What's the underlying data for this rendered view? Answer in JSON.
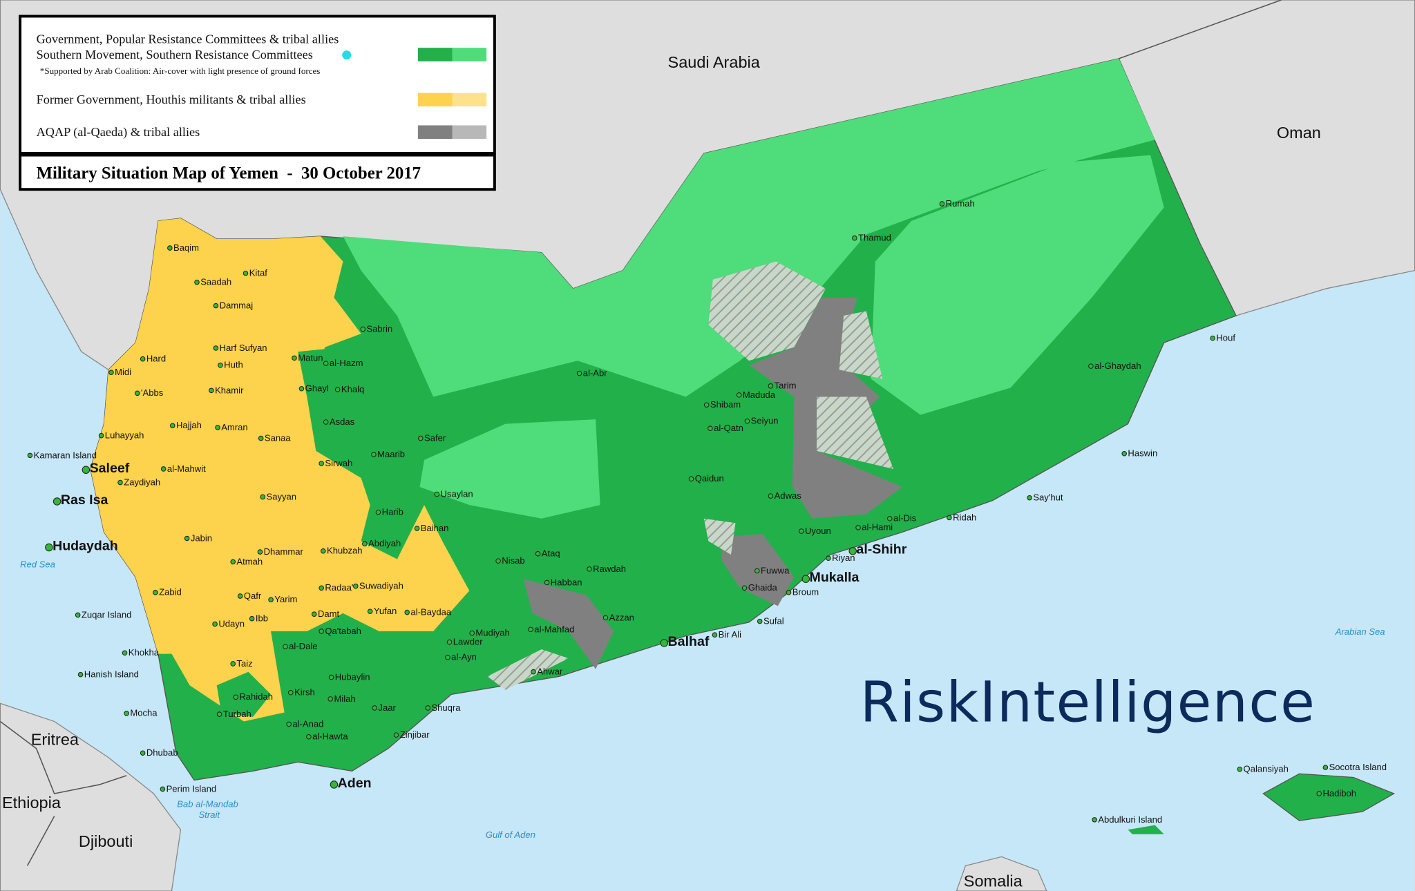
{
  "map": {
    "title": "Military Situation Map of Yemen  -  30 October 2017",
    "brand": "RiskIntelligence",
    "colors": {
      "sea": "#c6e7f8",
      "land": "#dedede",
      "government_dark": "#22b04a",
      "government_light": "#4fdc7a",
      "houthi_dark": "#fdd24c",
      "houthi_light": "#fde28c",
      "aqap_dark": "#808080",
      "aqap_light": "#b8b8b8",
      "southern_marker": "#22dde8"
    },
    "legend": [
      {
        "lines": [
          "Government, Popular Resistance Committees & tribal allies",
          "Southern Movement, Southern Resistance Committees"
        ],
        "note": "*Supported by Arab Coalition: Air-cover with light presence of ground forces",
        "marker": "cyan-dot"
      },
      {
        "lines": [
          "Former Government, Houthis militants & tribal allies"
        ]
      },
      {
        "lines": [
          "AQAP (al-Qaeda) & tribal allies"
        ]
      }
    ],
    "places": [
      {
        "name": "Saudi Arabia",
        "kind": "country"
      },
      {
        "name": "Oman",
        "kind": "country"
      },
      {
        "name": "Eritrea",
        "kind": "country"
      },
      {
        "name": "Ethiopia",
        "kind": "country"
      },
      {
        "name": "Djibouti",
        "kind": "country"
      },
      {
        "name": "Somalia",
        "kind": "country"
      },
      {
        "name": "Red Sea",
        "kind": "sea"
      },
      {
        "name": "Gulf of Aden",
        "kind": "sea"
      },
      {
        "name": "Arabian Sea",
        "kind": "sea"
      },
      {
        "name": "Bab al-Mandab",
        "kind": "sea"
      },
      {
        "name": "Strait",
        "kind": "sea"
      },
      {
        "name": "Ras Isa",
        "kind": "major"
      },
      {
        "name": "Hudaydah",
        "kind": "major"
      },
      {
        "name": "Saleef",
        "kind": "major"
      },
      {
        "name": "Aden",
        "kind": "major"
      },
      {
        "name": "Mukalla",
        "kind": "major"
      },
      {
        "name": "al-Shihr",
        "kind": "major"
      },
      {
        "name": "Balhaf",
        "kind": "major"
      },
      {
        "name": "Baqim"
      },
      {
        "name": "Saadah"
      },
      {
        "name": "Kitaf"
      },
      {
        "name": "Dammaj"
      },
      {
        "name": "Sabrin"
      },
      {
        "name": "Midi"
      },
      {
        "name": "Hard"
      },
      {
        "name": "Harf Sufyan"
      },
      {
        "name": "Huth"
      },
      {
        "name": "Matun"
      },
      {
        "name": "al-Hazm"
      },
      {
        "name": "Ghayl"
      },
      {
        "name": "Khalq"
      },
      {
        "name": "'Abbs"
      },
      {
        "name": "Khamir"
      },
      {
        "name": "Hajjah"
      },
      {
        "name": "Amran"
      },
      {
        "name": "Asdas"
      },
      {
        "name": "Luhayyah"
      },
      {
        "name": "Sanaa"
      },
      {
        "name": "Safer"
      },
      {
        "name": "Maarib"
      },
      {
        "name": "Kamaran Island"
      },
      {
        "name": "al-Mahwit"
      },
      {
        "name": "Sirwah"
      },
      {
        "name": "Zaydiyah"
      },
      {
        "name": "Usaylan"
      },
      {
        "name": "Sayyan"
      },
      {
        "name": "Harib"
      },
      {
        "name": "Baihan"
      },
      {
        "name": "Jabin"
      },
      {
        "name": "Abdiyah"
      },
      {
        "name": "Dhammar"
      },
      {
        "name": "Khubzah"
      },
      {
        "name": "Atmah"
      },
      {
        "name": "Suwadiyah"
      },
      {
        "name": "Radaa'"
      },
      {
        "name": "Qafr"
      },
      {
        "name": "Yarim"
      },
      {
        "name": "Zabid"
      },
      {
        "name": "Damt"
      },
      {
        "name": "Yufan"
      },
      {
        "name": "al-Baydaa"
      },
      {
        "name": "Zuqar Island"
      },
      {
        "name": "Ibb"
      },
      {
        "name": "Udayn"
      },
      {
        "name": "Qa'tabah"
      },
      {
        "name": "al-Dale"
      },
      {
        "name": "Khokha"
      },
      {
        "name": "Taiz"
      },
      {
        "name": "Hubaylin"
      },
      {
        "name": "Hanish Island"
      },
      {
        "name": "Rahidah"
      },
      {
        "name": "Kirsh"
      },
      {
        "name": "Milah"
      },
      {
        "name": "Jaar"
      },
      {
        "name": "Mocha"
      },
      {
        "name": "Turbah"
      },
      {
        "name": "al-Anad"
      },
      {
        "name": "al-Hawta"
      },
      {
        "name": "Zinjibar"
      },
      {
        "name": "Dhubab"
      },
      {
        "name": "Perim Island"
      },
      {
        "name": "Nisab"
      },
      {
        "name": "Ataq"
      },
      {
        "name": "Rawdah"
      },
      {
        "name": "Habban"
      },
      {
        "name": "Mudiyah"
      },
      {
        "name": "Lawder"
      },
      {
        "name": "al-Ayn"
      },
      {
        "name": "al-Mahfad"
      },
      {
        "name": "Azzan"
      },
      {
        "name": "Ahwar"
      },
      {
        "name": "Shuqra"
      },
      {
        "name": "Bir Ali"
      },
      {
        "name": "al-Abr"
      },
      {
        "name": "Qaidun"
      },
      {
        "name": "Shibam"
      },
      {
        "name": "Maduda"
      },
      {
        "name": "Tarim"
      },
      {
        "name": "al-Qatn"
      },
      {
        "name": "Seiyun"
      },
      {
        "name": "Adwas"
      },
      {
        "name": "Uyoun"
      },
      {
        "name": "Fuwwa"
      },
      {
        "name": "Ghaida"
      },
      {
        "name": "Broum"
      },
      {
        "name": "Sufal"
      },
      {
        "name": "Riyan"
      },
      {
        "name": "al-Hami"
      },
      {
        "name": "al-Dis"
      },
      {
        "name": "Ridah"
      },
      {
        "name": "Say'hut"
      },
      {
        "name": "Haswin"
      },
      {
        "name": "al-Ghaydah"
      },
      {
        "name": "Houf"
      },
      {
        "name": "Thamud"
      },
      {
        "name": "Rumah"
      },
      {
        "name": "Qalansiyah"
      },
      {
        "name": "Socotra Island"
      },
      {
        "name": "Hadiboh"
      },
      {
        "name": "Abdulkuri Island"
      }
    ]
  }
}
